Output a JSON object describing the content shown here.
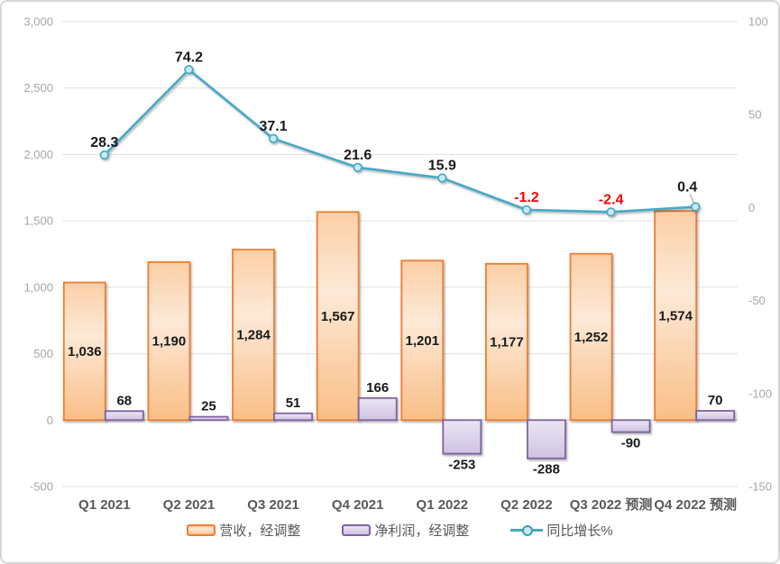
{
  "chart_data": {
    "type": "combo",
    "title": "",
    "categories": [
      "Q1 2021",
      "Q2 2021",
      "Q3 2021",
      "Q4 2021",
      "Q1 2022",
      "Q2 2022",
      "Q3 2022 预测",
      "Q4 2022 预测"
    ],
    "series": [
      {
        "name": "营收，经调整",
        "type": "bar",
        "axis": "left",
        "values": [
          1036,
          1190,
          1284,
          1567,
          1201,
          1177,
          1252,
          1574
        ],
        "labels": [
          "1,036",
          "1,190",
          "1,284",
          "1,567",
          "1,201",
          "1,177",
          "1,252",
          "1,574"
        ],
        "label_placement": "inside-center",
        "border_color": "#ED7D31",
        "fill_gradient": [
          "#FBCFA6",
          "#FDE9D7",
          "#F9BE87"
        ]
      },
      {
        "name": "净利润，经调整",
        "type": "bar",
        "axis": "left",
        "values": [
          68,
          25,
          51,
          166,
          -253,
          -288,
          -90,
          70
        ],
        "labels": [
          "68",
          "25",
          "51",
          "166",
          "-253",
          "-288",
          "-90",
          "70"
        ],
        "label_placement": "outside-end",
        "border_color": "#7E63A1",
        "fill_gradient": [
          "#EBE5F4",
          "#CFC3E2"
        ]
      },
      {
        "name": "同比增长%",
        "type": "line",
        "axis": "right",
        "values": [
          28.3,
          74.2,
          37.1,
          21.6,
          15.9,
          -1.2,
          -2.4,
          0.4
        ],
        "labels": [
          "28.3",
          "74.2",
          "37.1",
          "21.6",
          "15.9",
          "-1.2",
          "-2.4",
          "0.4"
        ],
        "color": "#45A9C8",
        "marker_fill": "#C9EAF5",
        "negative_label_color": "#FF0000",
        "callout_index": 7
      }
    ],
    "left_axis": {
      "min": -500,
      "max": 3000,
      "step": 500,
      "tick_labels": [
        "3,000",
        "2,500",
        "2,000",
        "1,500",
        "1,000",
        "500",
        "0",
        "-500"
      ]
    },
    "right_axis": {
      "min": -150,
      "max": 100,
      "step": 50,
      "tick_labels": [
        "100",
        "50",
        "0",
        "-50",
        "-100",
        "-150"
      ]
    },
    "grid": true,
    "legend_position": "bottom",
    "colors": {
      "gridline": "#E0E0E0",
      "zero_line": "#C9C9C9",
      "axis_text": "#A6A6A6",
      "category_text": "#595959",
      "data_label": "#1A1A1A",
      "negative_line_label": "#FF0000",
      "leader_line": "#A6A6A6"
    }
  },
  "legend": {
    "items": [
      {
        "label": "营收，经调整"
      },
      {
        "label": "净利润，经调整"
      },
      {
        "label": "同比增长%"
      }
    ]
  }
}
